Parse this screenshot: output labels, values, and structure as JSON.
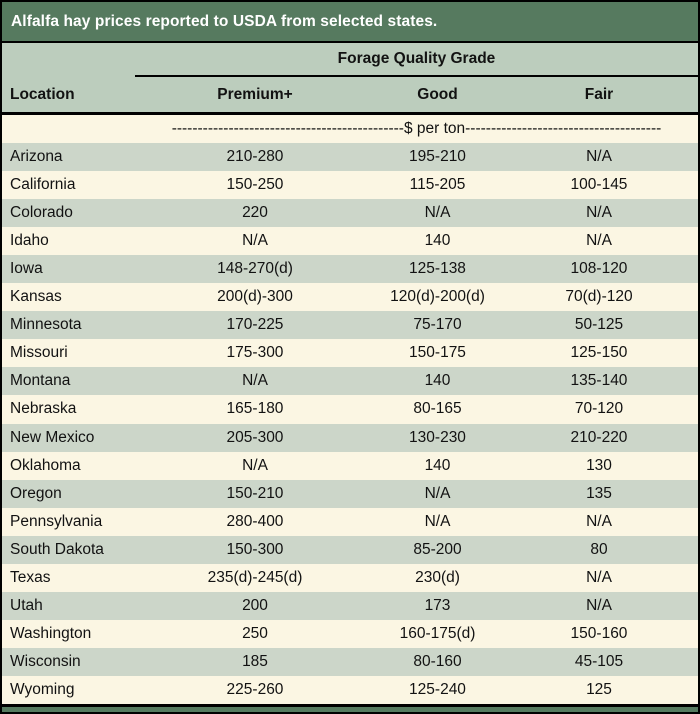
{
  "title": "Alfalfa hay prices reported to USDA from selected states.",
  "chart_data": {
    "type": "table",
    "title": "Alfalfa hay prices reported to USDA from selected states.",
    "group_header": "Forage Quality Grade",
    "columns": [
      "Location",
      "Premium+",
      "Good",
      "Fair"
    ],
    "unit_row": "---------------------------------------------$ per ton--------------------------------------",
    "unit_label": "$ per ton",
    "rows": [
      [
        "Arizona",
        "210-280",
        "195-210",
        "N/A"
      ],
      [
        "California",
        "150-250",
        "115-205",
        "100-145"
      ],
      [
        "Colorado",
        "220",
        "N/A",
        "N/A"
      ],
      [
        "Idaho",
        "N/A",
        "140",
        "N/A"
      ],
      [
        "Iowa",
        "148-270(d)",
        "125-138",
        "108-120"
      ],
      [
        "Kansas",
        "200(d)-300",
        "120(d)-200(d)",
        "70(d)-120"
      ],
      [
        "Minnesota",
        "170-225",
        "75-170",
        "50-125"
      ],
      [
        "Missouri",
        "175-300",
        "150-175",
        "125-150"
      ],
      [
        "Montana",
        "N/A",
        "140",
        "135-140"
      ],
      [
        "Nebraska",
        "165-180",
        "80-165",
        "70-120"
      ],
      [
        "New Mexico",
        "205-300",
        "130-230",
        "210-220"
      ],
      [
        "Oklahoma",
        "N/A",
        "140",
        "130"
      ],
      [
        "Oregon",
        "150-210",
        "N/A",
        "135"
      ],
      [
        "Pennsylvania",
        "280-400",
        "N/A",
        "N/A"
      ],
      [
        "South Dakota",
        "150-300",
        "85-200",
        "80"
      ],
      [
        "Texas",
        "235(d)-245(d)",
        "230(d)",
        "N/A"
      ],
      [
        "Utah",
        "200",
        "173",
        "N/A"
      ],
      [
        "Washington",
        "250",
        "160-175(d)",
        "150-160"
      ],
      [
        "Wisconsin",
        "185",
        "80-160",
        "45-105"
      ],
      [
        "Wyoming",
        "225-260",
        "125-240",
        "125"
      ]
    ]
  },
  "colors": {
    "title_bg": "#567a5f",
    "title_text": "#ffffff",
    "header_bg": "#bccdbd",
    "row_green": "#ccd6c9",
    "row_cream": "#fbf6e3",
    "border": "#000000",
    "body_text": "#121212"
  }
}
